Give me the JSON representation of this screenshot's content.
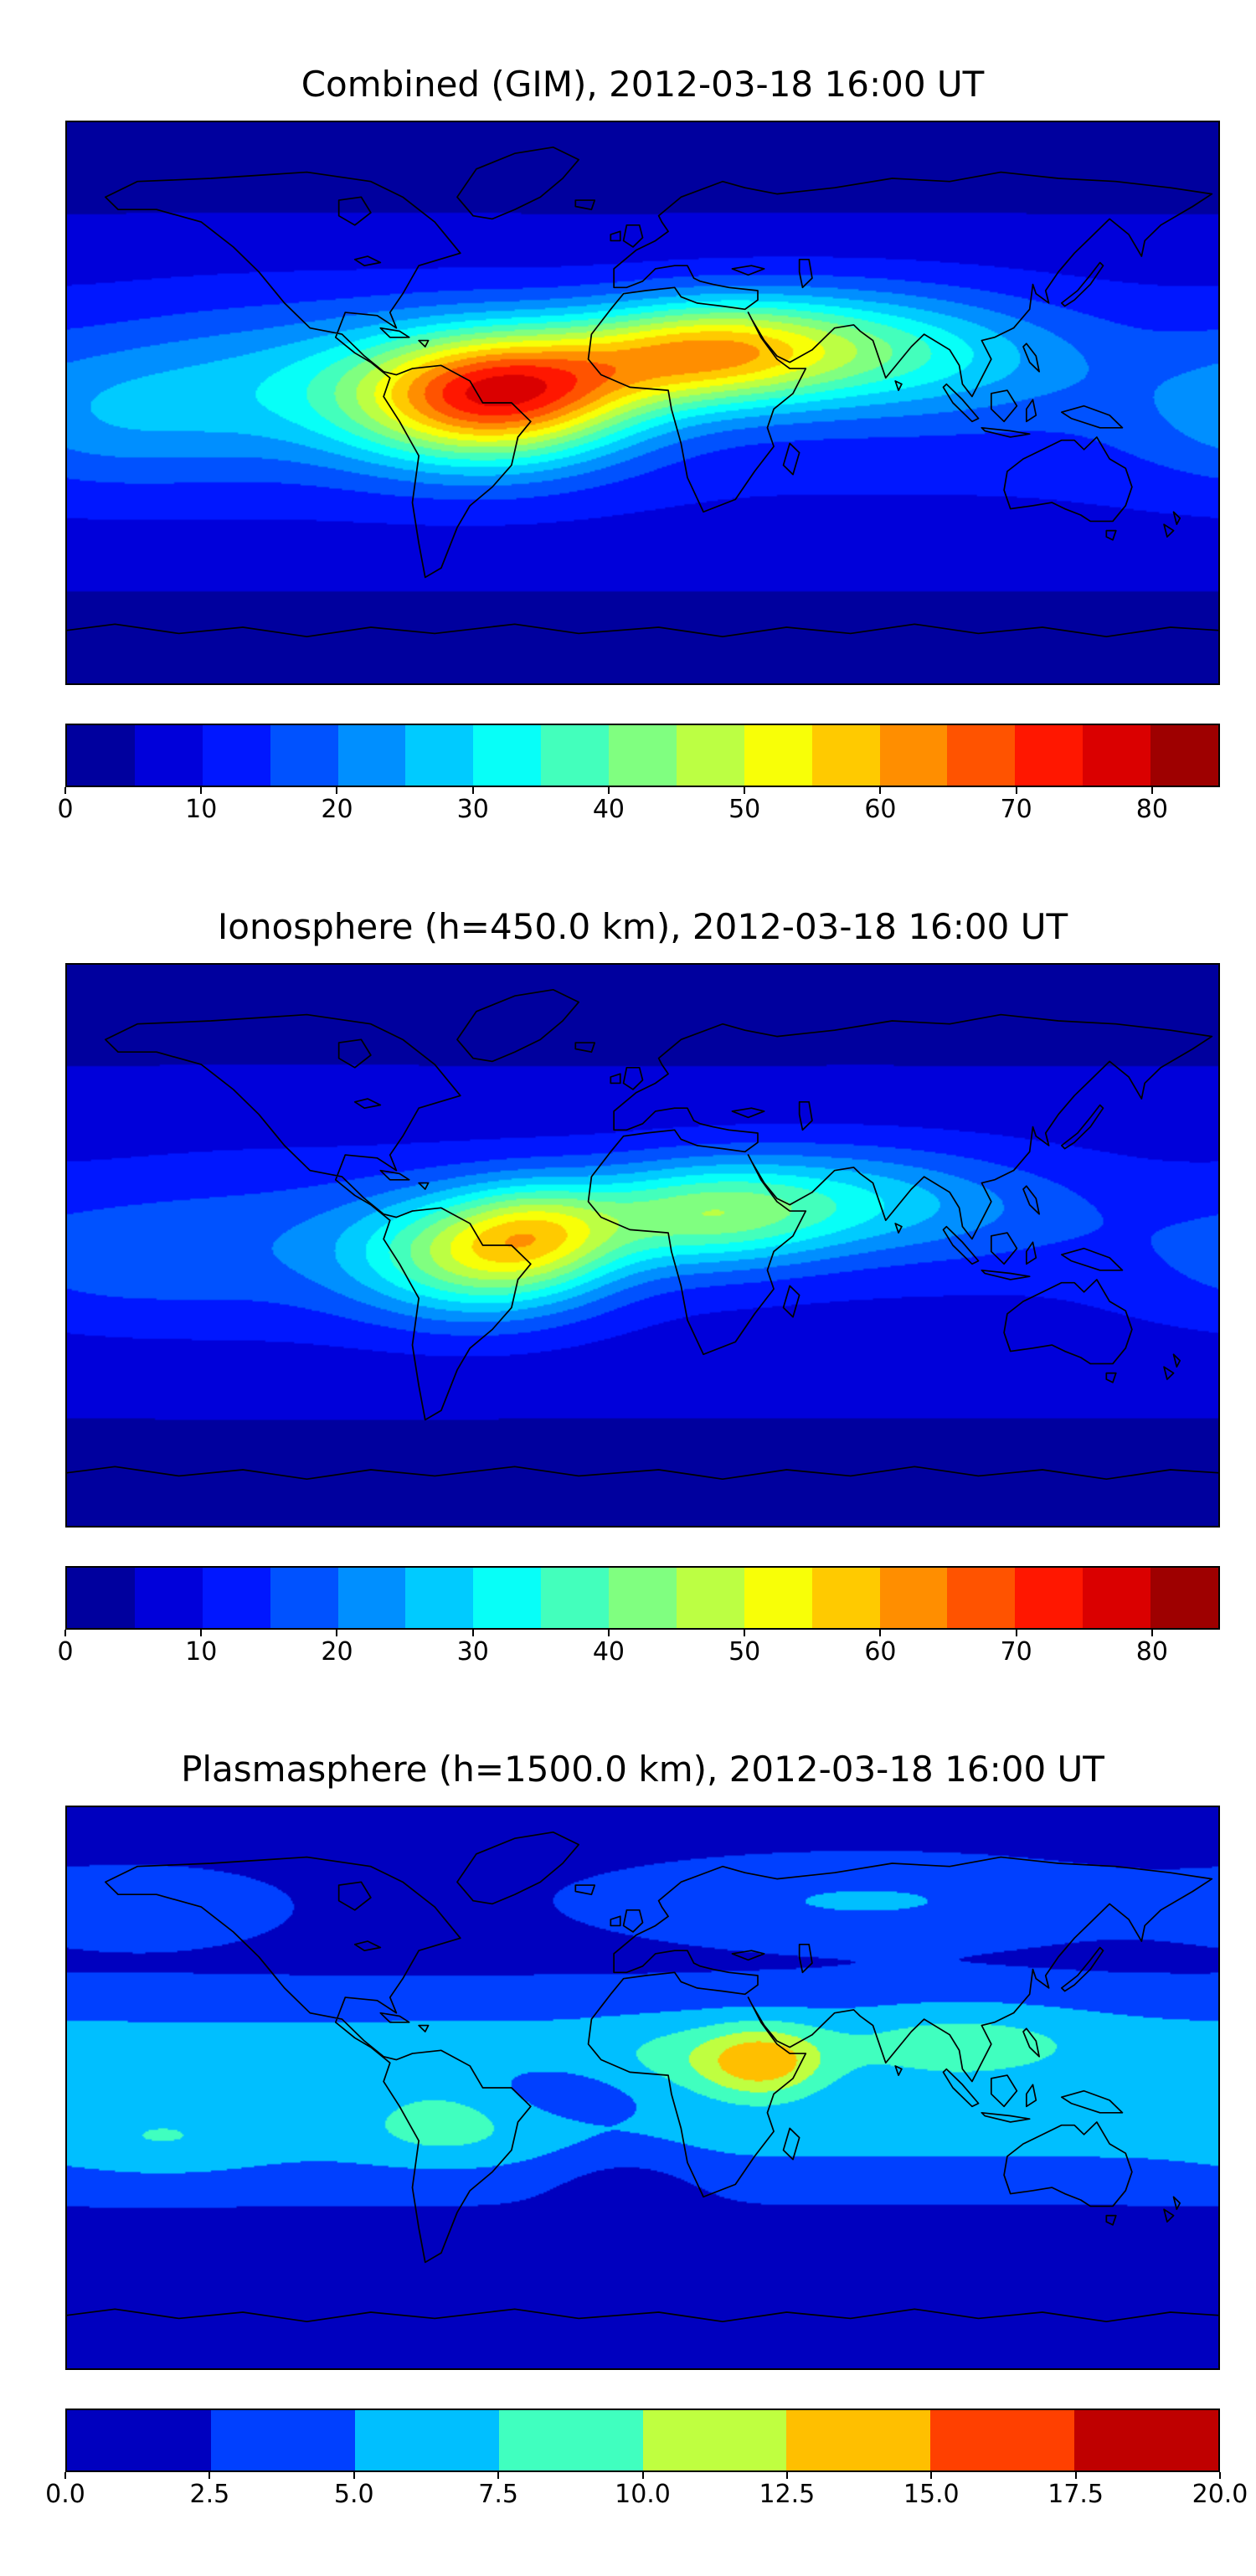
{
  "figure": {
    "background": "#ffffff",
    "colormap": "jet",
    "projection": "equirectangular world map, lon -180..180, lat -90..90, black coastlines"
  },
  "chart_data": [
    {
      "type": "heatmap",
      "title": "Combined (GIM), 2012-03-18 16:00 UT",
      "colormap": "jet",
      "vmin": 0,
      "vmax": 85,
      "level_step": 5,
      "colorbar_ticks": [
        {
          "label": "0",
          "value": 0
        },
        {
          "label": "10",
          "value": 10
        },
        {
          "label": "20",
          "value": 20
        },
        {
          "label": "30",
          "value": 30
        },
        {
          "label": "40",
          "value": 40
        },
        {
          "label": "50",
          "value": 50
        },
        {
          "label": "60",
          "value": 60
        },
        {
          "label": "70",
          "value": 70
        },
        {
          "label": "80",
          "value": 80
        }
      ],
      "peak": {
        "lon": -48,
        "lat": 2,
        "value": 72
      },
      "field": {
        "constant": 4,
        "lat_bands": [
          {
            "amp": 8,
            "lat": 0,
            "sigma": 38
          },
          {
            "amp": -2.5,
            "lat": 78,
            "sigma": 15
          },
          {
            "amp": -2.5,
            "lat": -78,
            "sigma": 15
          }
        ],
        "blobs": [
          {
            "lon": -48,
            "lat": 2,
            "amp": 52,
            "slon": 30,
            "slat": 15
          },
          {
            "lon": -25,
            "lat": 8,
            "amp": 12,
            "slon": 25,
            "slat": 12
          },
          {
            "lon": 18,
            "lat": 16,
            "amp": 40,
            "slon": 28,
            "slat": 12
          },
          {
            "lon": 60,
            "lat": 18,
            "amp": 18,
            "slon": 30,
            "slat": 13
          },
          {
            "lon": 100,
            "lat": 15,
            "amp": 12,
            "slon": 35,
            "slat": 14
          },
          {
            "lon": -110,
            "lat": 5,
            "amp": 14,
            "slon": 45,
            "slat": 18
          },
          {
            "lon": -170,
            "lat": -5,
            "amp": 8,
            "slon": 30,
            "slat": 15
          }
        ]
      }
    },
    {
      "type": "heatmap",
      "title": "Ionosphere  (h=450.0 km), 2012-03-18 16:00 UT",
      "colormap": "jet",
      "vmin": 0,
      "vmax": 85,
      "level_step": 5,
      "colorbar_ticks": [
        {
          "label": "0",
          "value": 0
        },
        {
          "label": "10",
          "value": 10
        },
        {
          "label": "20",
          "value": 20
        },
        {
          "label": "30",
          "value": 30
        },
        {
          "label": "40",
          "value": 40
        },
        {
          "label": "50",
          "value": 50
        },
        {
          "label": "60",
          "value": 60
        },
        {
          "label": "70",
          "value": 70
        },
        {
          "label": "80",
          "value": 80
        }
      ],
      "peak": {
        "lon": -50,
        "lat": -3,
        "value": 52
      },
      "field": {
        "constant": 3.5,
        "lat_bands": [
          {
            "amp": 6,
            "lat": 2,
            "sigma": 40
          },
          {
            "amp": -2,
            "lat": 78,
            "sigma": 15
          },
          {
            "amp": -2,
            "lat": -78,
            "sigma": 15
          }
        ],
        "blobs": [
          {
            "lon": -50,
            "lat": -3,
            "amp": 34,
            "slon": 27,
            "slat": 14
          },
          {
            "lon": -32,
            "lat": 5,
            "amp": 18,
            "slon": 18,
            "slat": 11
          },
          {
            "lon": 18,
            "lat": 10,
            "amp": 30,
            "slon": 29,
            "slat": 12
          },
          {
            "lon": 62,
            "lat": 15,
            "amp": 12,
            "slon": 30,
            "slat": 12
          },
          {
            "lon": 102,
            "lat": 12,
            "amp": 8,
            "slon": 35,
            "slat": 13
          },
          {
            "lon": -112,
            "lat": 0,
            "amp": 8,
            "slon": 45,
            "slat": 18
          },
          {
            "lon": -172,
            "lat": -5,
            "amp": 5,
            "slon": 30,
            "slat": 14
          }
        ]
      }
    },
    {
      "type": "heatmap",
      "title": "Plasmasphere (h=1500.0 km), 2012-03-18 16:00 UT",
      "colormap": "jet",
      "vmin": 0,
      "vmax": 20,
      "level_step": 2.5,
      "colorbar_ticks": [
        {
          "label": "0.0",
          "value": 0
        },
        {
          "label": "2.5",
          "value": 2.5
        },
        {
          "label": "5.0",
          "value": 5
        },
        {
          "label": "7.5",
          "value": 7.5
        },
        {
          "label": "10.0",
          "value": 10
        },
        {
          "label": "12.5",
          "value": 12.5
        },
        {
          "label": "15.0",
          "value": 15
        },
        {
          "label": "17.5",
          "value": 17.5
        },
        {
          "label": "20.0",
          "value": 20
        }
      ],
      "peak": {
        "lon": 38,
        "lat": 8,
        "value": 15
      },
      "field": {
        "constant": 1.8,
        "lat_bands": [
          {
            "amp": 3.8,
            "lat": 14,
            "sigma": 12
          },
          {
            "amp": 3.6,
            "lat": -16,
            "sigma": 12
          }
        ],
        "blobs": [
          {
            "lon": 38,
            "lat": 8,
            "amp": 6.8,
            "slon": 13,
            "slat": 8
          },
          {
            "lon": 20,
            "lat": 8,
            "amp": 3.2,
            "slon": 22,
            "slat": 9
          },
          {
            "lon": -62,
            "lat": -10,
            "amp": 3.4,
            "slon": 18,
            "slat": 9
          },
          {
            "lon": 100,
            "lat": 14,
            "amp": 3.0,
            "slon": 28,
            "slat": 10
          },
          {
            "lon": -150,
            "lat": -16,
            "amp": 2.0,
            "slon": 22,
            "slat": 9
          },
          {
            "lon": 70,
            "lat": 60,
            "amp": 3.4,
            "slon": 55,
            "slat": 9
          },
          {
            "lon": -155,
            "lat": 58,
            "amp": 2.6,
            "slon": 28,
            "slat": 8
          },
          {
            "lon": -5,
            "lat": -30,
            "amp": -2.2,
            "slon": 16,
            "slat": 9
          },
          {
            "lon": -25,
            "lat": -2,
            "amp": -1.5,
            "slon": 25,
            "slat": 7
          }
        ]
      }
    }
  ]
}
